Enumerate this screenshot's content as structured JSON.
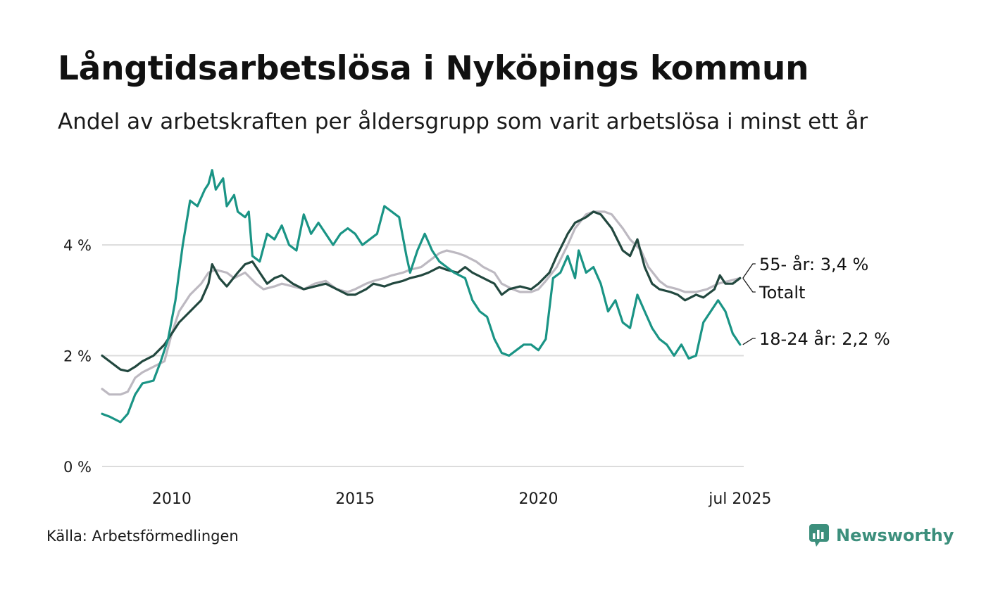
{
  "title": "Långtidsarbetslösa i Nyköpings kommun",
  "subtitle": "Andel av arbetskraften per åldersgrupp som varit arbetslösa i minst ett år",
  "source": "Källa: Arbetsförmedlingen",
  "brand": {
    "name": "Newsworthy",
    "icon": "newsworthy-logo-icon",
    "color": "#3c8f7c"
  },
  "colors": {
    "grid": "#dcdcdc",
    "series_18_24": "#1a9485",
    "series_totalt": "#22483f",
    "series_55": "#bdb9c1"
  },
  "chart_data": {
    "type": "line",
    "title": "Långtidsarbetslösa i Nyköpings kommun",
    "subtitle": "Andel av arbetskraften per åldersgrupp som varit arbetslösa i minst ett år",
    "xlabel": "",
    "ylabel": "",
    "ylim": [
      0,
      5.5
    ],
    "xlim": [
      2008.1,
      2025.6
    ],
    "y_ticks": [
      0,
      2,
      4
    ],
    "y_tick_labels": [
      "0 %",
      "2 %",
      "4 %"
    ],
    "x_ticks": [
      2010,
      2015,
      2020,
      2025.5
    ],
    "x_tick_labels": [
      "2010",
      "2015",
      "2020",
      "jul 2025"
    ],
    "grid": true,
    "legend": "direct labels at line ends",
    "series": [
      {
        "name": "55- år",
        "end_label": "55- år: 3,4 %",
        "color": "#bdb9c1",
        "points": [
          [
            2008.1,
            1.4
          ],
          [
            2008.3,
            1.3
          ],
          [
            2008.6,
            1.3
          ],
          [
            2008.8,
            1.35
          ],
          [
            2009.0,
            1.6
          ],
          [
            2009.2,
            1.7
          ],
          [
            2009.5,
            1.8
          ],
          [
            2009.8,
            1.9
          ],
          [
            2010.0,
            2.4
          ],
          [
            2010.2,
            2.8
          ],
          [
            2010.5,
            3.1
          ],
          [
            2010.8,
            3.3
          ],
          [
            2011.0,
            3.5
          ],
          [
            2011.2,
            3.55
          ],
          [
            2011.5,
            3.5
          ],
          [
            2011.7,
            3.4
          ],
          [
            2012.0,
            3.5
          ],
          [
            2012.3,
            3.3
          ],
          [
            2012.5,
            3.2
          ],
          [
            2012.8,
            3.25
          ],
          [
            2013.0,
            3.3
          ],
          [
            2013.3,
            3.25
          ],
          [
            2013.6,
            3.2
          ],
          [
            2013.9,
            3.3
          ],
          [
            2014.2,
            3.35
          ],
          [
            2014.5,
            3.2
          ],
          [
            2014.8,
            3.15
          ],
          [
            2015.0,
            3.2
          ],
          [
            2015.3,
            3.3
          ],
          [
            2015.5,
            3.35
          ],
          [
            2015.8,
            3.4
          ],
          [
            2016.0,
            3.45
          ],
          [
            2016.3,
            3.5
          ],
          [
            2016.5,
            3.55
          ],
          [
            2016.8,
            3.6
          ],
          [
            2017.0,
            3.7
          ],
          [
            2017.3,
            3.85
          ],
          [
            2017.5,
            3.9
          ],
          [
            2017.8,
            3.85
          ],
          [
            2018.0,
            3.8
          ],
          [
            2018.3,
            3.7
          ],
          [
            2018.5,
            3.6
          ],
          [
            2018.8,
            3.5
          ],
          [
            2019.0,
            3.3
          ],
          [
            2019.3,
            3.2
          ],
          [
            2019.5,
            3.15
          ],
          [
            2019.8,
            3.15
          ],
          [
            2020.0,
            3.2
          ],
          [
            2020.2,
            3.35
          ],
          [
            2020.5,
            3.6
          ],
          [
            2020.8,
            4.0
          ],
          [
            2021.0,
            4.3
          ],
          [
            2021.3,
            4.55
          ],
          [
            2021.5,
            4.6
          ],
          [
            2021.8,
            4.6
          ],
          [
            2022.0,
            4.55
          ],
          [
            2022.3,
            4.3
          ],
          [
            2022.5,
            4.1
          ],
          [
            2022.8,
            3.9
          ],
          [
            2023.0,
            3.6
          ],
          [
            2023.3,
            3.35
          ],
          [
            2023.5,
            3.25
          ],
          [
            2023.8,
            3.2
          ],
          [
            2024.0,
            3.15
          ],
          [
            2024.3,
            3.15
          ],
          [
            2024.6,
            3.2
          ],
          [
            2024.9,
            3.3
          ],
          [
            2025.2,
            3.35
          ],
          [
            2025.5,
            3.4
          ]
        ]
      },
      {
        "name": "Totalt",
        "end_label": "Totalt",
        "color": "#22483f",
        "points": [
          [
            2008.1,
            2.0
          ],
          [
            2008.3,
            1.9
          ],
          [
            2008.6,
            1.75
          ],
          [
            2008.8,
            1.72
          ],
          [
            2009.0,
            1.8
          ],
          [
            2009.2,
            1.9
          ],
          [
            2009.5,
            2.0
          ],
          [
            2009.8,
            2.2
          ],
          [
            2010.0,
            2.4
          ],
          [
            2010.2,
            2.6
          ],
          [
            2010.5,
            2.8
          ],
          [
            2010.8,
            3.0
          ],
          [
            2011.0,
            3.3
          ],
          [
            2011.1,
            3.65
          ],
          [
            2011.3,
            3.4
          ],
          [
            2011.5,
            3.25
          ],
          [
            2011.8,
            3.5
          ],
          [
            2012.0,
            3.65
          ],
          [
            2012.2,
            3.7
          ],
          [
            2012.4,
            3.5
          ],
          [
            2012.6,
            3.3
          ],
          [
            2012.8,
            3.4
          ],
          [
            2013.0,
            3.45
          ],
          [
            2013.3,
            3.3
          ],
          [
            2013.6,
            3.2
          ],
          [
            2013.9,
            3.25
          ],
          [
            2014.2,
            3.3
          ],
          [
            2014.5,
            3.2
          ],
          [
            2014.8,
            3.1
          ],
          [
            2015.0,
            3.1
          ],
          [
            2015.3,
            3.2
          ],
          [
            2015.5,
            3.3
          ],
          [
            2015.8,
            3.25
          ],
          [
            2016.0,
            3.3
          ],
          [
            2016.3,
            3.35
          ],
          [
            2016.5,
            3.4
          ],
          [
            2016.8,
            3.45
          ],
          [
            2017.0,
            3.5
          ],
          [
            2017.3,
            3.6
          ],
          [
            2017.5,
            3.55
          ],
          [
            2017.8,
            3.5
          ],
          [
            2018.0,
            3.6
          ],
          [
            2018.2,
            3.5
          ],
          [
            2018.5,
            3.4
          ],
          [
            2018.8,
            3.3
          ],
          [
            2019.0,
            3.1
          ],
          [
            2019.2,
            3.2
          ],
          [
            2019.5,
            3.25
          ],
          [
            2019.8,
            3.2
          ],
          [
            2020.0,
            3.3
          ],
          [
            2020.3,
            3.5
          ],
          [
            2020.5,
            3.8
          ],
          [
            2020.8,
            4.2
          ],
          [
            2021.0,
            4.4
          ],
          [
            2021.3,
            4.5
          ],
          [
            2021.5,
            4.6
          ],
          [
            2021.7,
            4.55
          ],
          [
            2022.0,
            4.3
          ],
          [
            2022.3,
            3.9
          ],
          [
            2022.5,
            3.8
          ],
          [
            2022.7,
            4.1
          ],
          [
            2022.9,
            3.6
          ],
          [
            2023.1,
            3.3
          ],
          [
            2023.3,
            3.2
          ],
          [
            2023.6,
            3.15
          ],
          [
            2023.8,
            3.1
          ],
          [
            2024.0,
            3.0
          ],
          [
            2024.3,
            3.1
          ],
          [
            2024.5,
            3.05
          ],
          [
            2024.8,
            3.2
          ],
          [
            2024.95,
            3.45
          ],
          [
            2025.1,
            3.3
          ],
          [
            2025.3,
            3.3
          ],
          [
            2025.5,
            3.4
          ]
        ]
      },
      {
        "name": "18-24 år",
        "end_label": "18-24 år: 2,2 %",
        "color": "#1a9485",
        "points": [
          [
            2008.1,
            0.95
          ],
          [
            2008.3,
            0.9
          ],
          [
            2008.6,
            0.8
          ],
          [
            2008.8,
            0.95
          ],
          [
            2009.0,
            1.3
          ],
          [
            2009.2,
            1.5
          ],
          [
            2009.5,
            1.55
          ],
          [
            2009.7,
            1.9
          ],
          [
            2009.9,
            2.3
          ],
          [
            2010.1,
            3.0
          ],
          [
            2010.3,
            4.0
          ],
          [
            2010.5,
            4.8
          ],
          [
            2010.7,
            4.7
          ],
          [
            2010.9,
            5.0
          ],
          [
            2011.0,
            5.1
          ],
          [
            2011.1,
            5.35
          ],
          [
            2011.2,
            5.0
          ],
          [
            2011.4,
            5.2
          ],
          [
            2011.5,
            4.7
          ],
          [
            2011.7,
            4.9
          ],
          [
            2011.8,
            4.6
          ],
          [
            2012.0,
            4.5
          ],
          [
            2012.1,
            4.6
          ],
          [
            2012.2,
            3.8
          ],
          [
            2012.4,
            3.7
          ],
          [
            2012.6,
            4.2
          ],
          [
            2012.8,
            4.1
          ],
          [
            2013.0,
            4.35
          ],
          [
            2013.2,
            4.0
          ],
          [
            2013.4,
            3.9
          ],
          [
            2013.6,
            4.55
          ],
          [
            2013.8,
            4.2
          ],
          [
            2014.0,
            4.4
          ],
          [
            2014.2,
            4.2
          ],
          [
            2014.4,
            4.0
          ],
          [
            2014.6,
            4.2
          ],
          [
            2014.8,
            4.3
          ],
          [
            2015.0,
            4.2
          ],
          [
            2015.2,
            4.0
          ],
          [
            2015.4,
            4.1
          ],
          [
            2015.6,
            4.2
          ],
          [
            2015.8,
            4.7
          ],
          [
            2016.0,
            4.6
          ],
          [
            2016.2,
            4.5
          ],
          [
            2016.4,
            3.8
          ],
          [
            2016.5,
            3.5
          ],
          [
            2016.7,
            3.9
          ],
          [
            2016.9,
            4.2
          ],
          [
            2017.1,
            3.9
          ],
          [
            2017.3,
            3.7
          ],
          [
            2017.5,
            3.6
          ],
          [
            2017.7,
            3.5
          ],
          [
            2018.0,
            3.4
          ],
          [
            2018.2,
            3.0
          ],
          [
            2018.4,
            2.8
          ],
          [
            2018.6,
            2.7
          ],
          [
            2018.8,
            2.3
          ],
          [
            2019.0,
            2.05
          ],
          [
            2019.2,
            2.0
          ],
          [
            2019.4,
            2.1
          ],
          [
            2019.6,
            2.2
          ],
          [
            2019.8,
            2.2
          ],
          [
            2020.0,
            2.1
          ],
          [
            2020.2,
            2.3
          ],
          [
            2020.4,
            3.4
          ],
          [
            2020.6,
            3.5
          ],
          [
            2020.8,
            3.8
          ],
          [
            2021.0,
            3.4
          ],
          [
            2021.1,
            3.9
          ],
          [
            2021.3,
            3.5
          ],
          [
            2021.5,
            3.6
          ],
          [
            2021.7,
            3.3
          ],
          [
            2021.9,
            2.8
          ],
          [
            2022.1,
            3.0
          ],
          [
            2022.3,
            2.6
          ],
          [
            2022.5,
            2.5
          ],
          [
            2022.7,
            3.1
          ],
          [
            2022.9,
            2.8
          ],
          [
            2023.1,
            2.5
          ],
          [
            2023.3,
            2.3
          ],
          [
            2023.5,
            2.2
          ],
          [
            2023.7,
            2.0
          ],
          [
            2023.9,
            2.2
          ],
          [
            2024.1,
            1.95
          ],
          [
            2024.3,
            2.0
          ],
          [
            2024.5,
            2.6
          ],
          [
            2024.7,
            2.8
          ],
          [
            2024.9,
            3.0
          ],
          [
            2025.1,
            2.8
          ],
          [
            2025.3,
            2.4
          ],
          [
            2025.5,
            2.2
          ]
        ]
      }
    ]
  }
}
